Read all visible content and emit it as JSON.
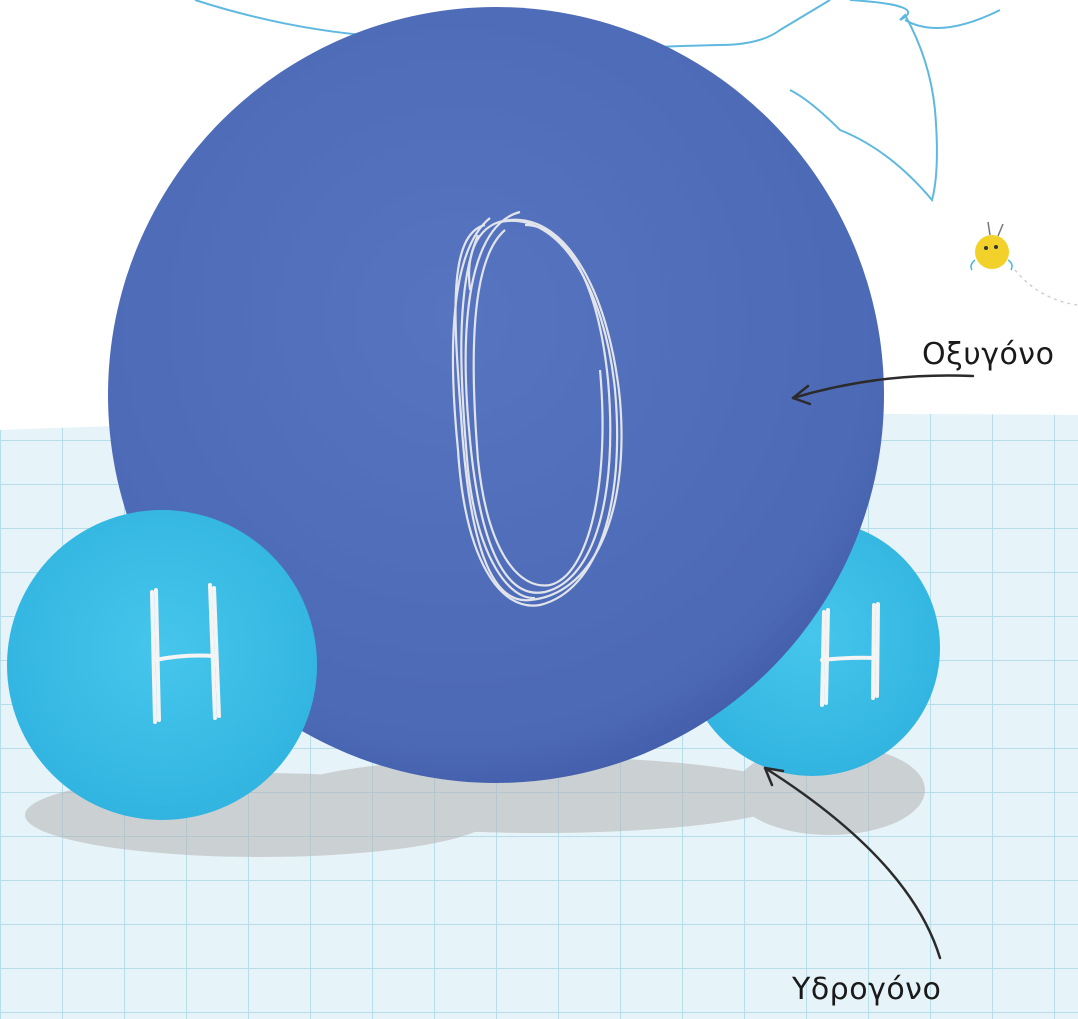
{
  "atoms": [
    {
      "id": "oxygen",
      "symbol": "O",
      "label": "Οξυγόνο",
      "color": "#4f6db8"
    },
    {
      "id": "hydrogen-left",
      "symbol": "H",
      "color": "#3bbde6"
    },
    {
      "id": "hydrogen-right",
      "symbol": "H",
      "color": "#3bbde6"
    }
  ],
  "labels": {
    "oxygen": "Οξυγόνο",
    "hydrogen": "Υδρογόνο"
  },
  "colors": {
    "floor": "#e6f3f8",
    "grid": "#a9d8e6",
    "bubble_outline": "#5fb8e0",
    "shadow": "#b5b5b5",
    "oxygen": "#4f6db8",
    "hydrogen": "#3bbde6",
    "chalk": "#f4f4f4",
    "arrow": "#2b2b2b",
    "creature": "#f2d12a"
  },
  "icons": [
    "speech-bubble-icon",
    "yellow-creature-icon"
  ]
}
